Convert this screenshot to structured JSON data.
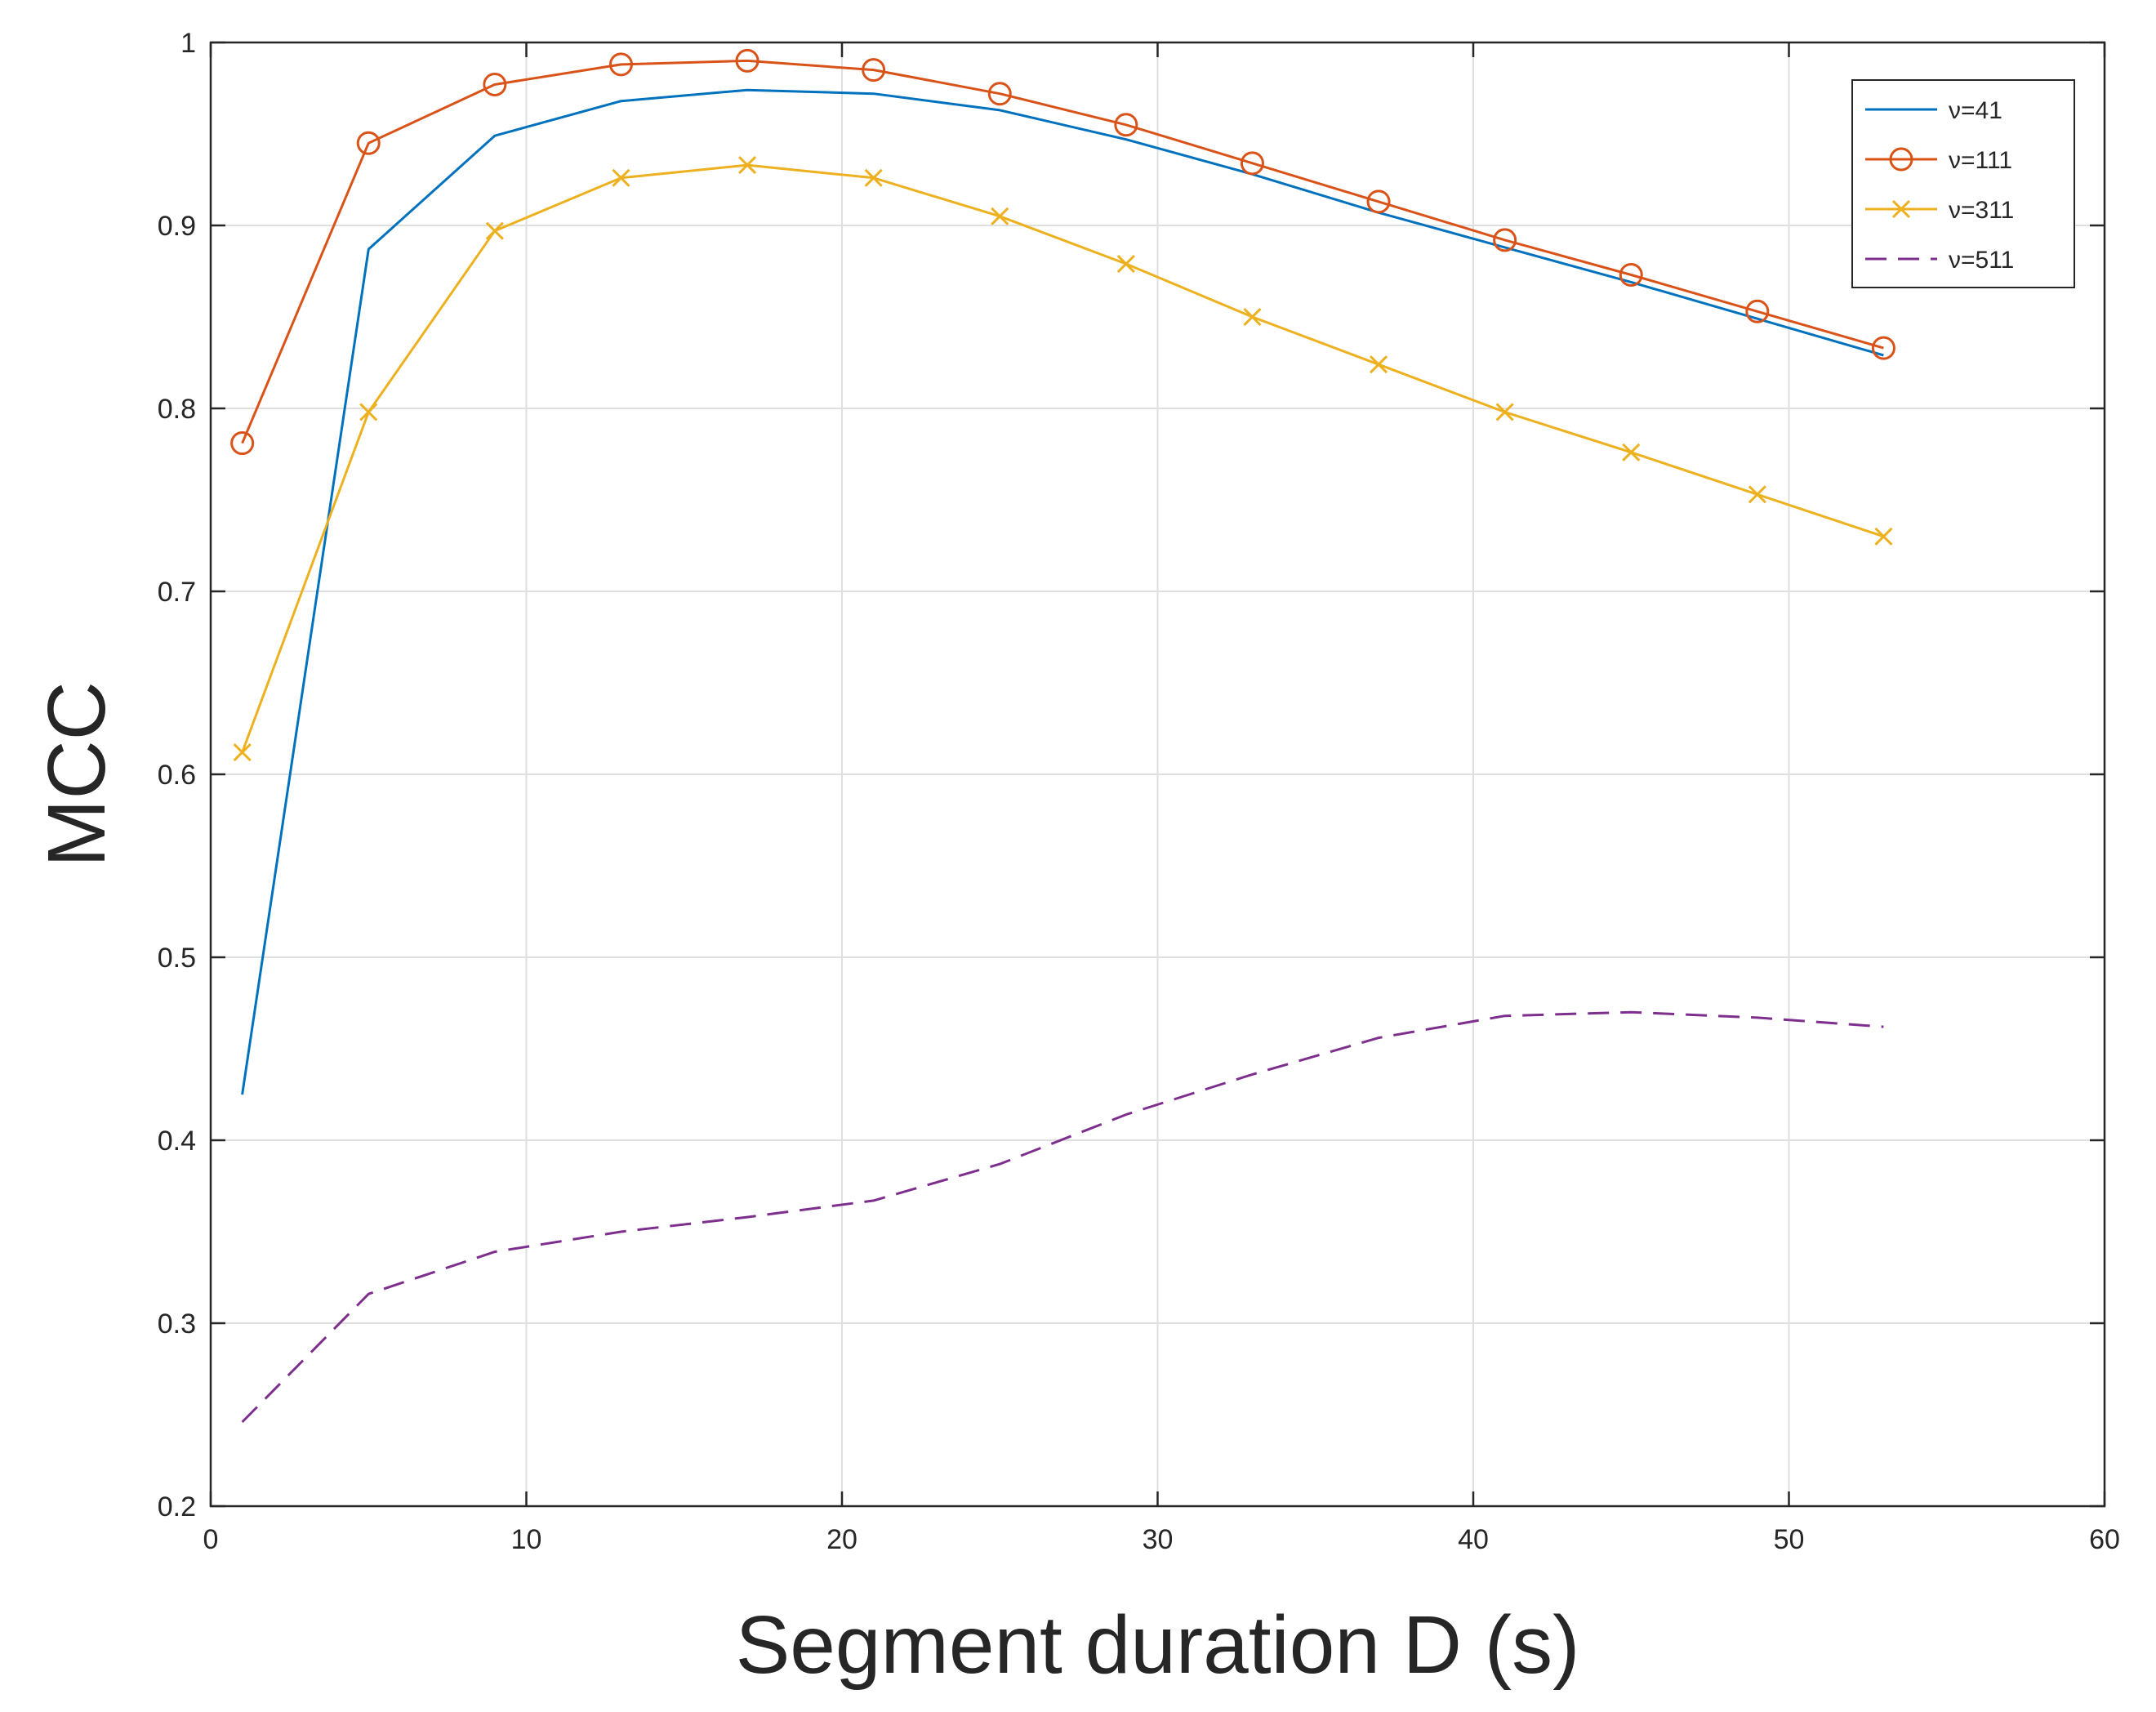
{
  "chart_data": {
    "type": "line",
    "title": "",
    "xlabel": "Segment duration D (s)",
    "ylabel": "MCC",
    "xlim": [
      0,
      60
    ],
    "ylim": [
      0.2,
      1
    ],
    "xticks": [
      0,
      10,
      20,
      30,
      40,
      50,
      60
    ],
    "yticks": [
      0.2,
      0.3,
      0.4,
      0.5,
      0.6,
      0.7,
      0.8,
      0.9,
      1
    ],
    "xtick_labels": [
      "0",
      "10",
      "20",
      "30",
      "40",
      "50",
      "60"
    ],
    "ytick_labels": [
      "0.2",
      "0.3",
      "0.4",
      "0.5",
      "0.6",
      "0.7",
      "0.8",
      "0.9",
      "1"
    ],
    "grid": true,
    "legend_position": "top-right",
    "x": [
      1,
      5,
      9,
      13,
      17,
      21,
      25,
      29,
      33,
      37,
      41,
      45,
      49,
      53
    ],
    "series": [
      {
        "name": "ν=41",
        "color": "#0072bd",
        "marker": "none",
        "dash": "solid",
        "values": [
          0.425,
          0.887,
          0.949,
          0.968,
          0.974,
          0.972,
          0.963,
          0.947,
          0.928,
          0.907,
          0.888,
          0.869,
          0.849,
          0.829
        ]
      },
      {
        "name": "ν=111",
        "color": "#d95319",
        "marker": "circle",
        "dash": "solid",
        "values": [
          0.781,
          0.945,
          0.977,
          0.988,
          0.99,
          0.985,
          0.972,
          0.955,
          0.934,
          0.913,
          0.892,
          0.873,
          0.853,
          0.833
        ]
      },
      {
        "name": "ν=311",
        "color": "#edb120",
        "marker": "x",
        "dash": "solid",
        "values": [
          0.612,
          0.798,
          0.897,
          0.926,
          0.933,
          0.926,
          0.905,
          0.879,
          0.85,
          0.824,
          0.798,
          0.776,
          0.753,
          0.73
        ]
      },
      {
        "name": "ν=511",
        "color": "#7e2f8e",
        "marker": "none",
        "dash": "dashed",
        "values": [
          0.246,
          0.316,
          0.339,
          0.35,
          0.358,
          0.367,
          0.387,
          0.414,
          0.436,
          0.456,
          0.468,
          0.47,
          0.467,
          0.462
        ]
      }
    ]
  }
}
